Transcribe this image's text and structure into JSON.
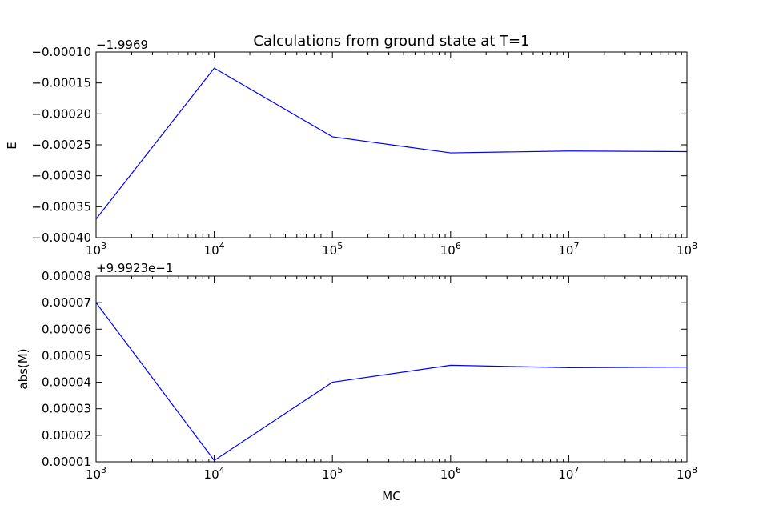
{
  "chart_data": [
    {
      "type": "line",
      "title": "Calculations from ground state at T=1",
      "xlabel": "",
      "ylabel": "E",
      "xscale": "log",
      "xlim": [
        1000,
        100000000
      ],
      "ylim": [
        -0.0004,
        -0.0001
      ],
      "y_offset_label": "−1.9969",
      "x_tick_bases": [
        "10",
        "10",
        "10",
        "10",
        "10",
        "10"
      ],
      "x_tick_exponents": [
        "3",
        "4",
        "5",
        "6",
        "7",
        "8"
      ],
      "y_ticks": [
        -0.0001,
        -0.00015,
        -0.0002,
        -0.00025,
        -0.0003,
        -0.00035,
        -0.0004
      ],
      "y_tick_labels": [
        "−0.00010",
        "−0.00015",
        "−0.00020",
        "−0.00025",
        "−0.00030",
        "−0.00035",
        "−0.00040"
      ],
      "series": [
        {
          "color": "#0000ff",
          "x": [
            1000,
            10000,
            100000,
            1000000,
            10000000,
            100000000
          ],
          "values": [
            -0.00037,
            -0.000126,
            -0.000237,
            -0.000263,
            -0.00026,
            -0.000261
          ]
        }
      ],
      "grid": false
    },
    {
      "type": "line",
      "title": "",
      "xlabel": "MC",
      "ylabel": "abs(M)",
      "xscale": "log",
      "xlim": [
        1000,
        100000000
      ],
      "ylim": [
        1e-05,
        8e-05
      ],
      "y_offset_label": "+9.9923e−1",
      "x_tick_bases": [
        "10",
        "10",
        "10",
        "10",
        "10",
        "10"
      ],
      "x_tick_exponents": [
        "3",
        "4",
        "5",
        "6",
        "7",
        "8"
      ],
      "y_ticks": [
        8e-05,
        7e-05,
        6e-05,
        5e-05,
        4e-05,
        3e-05,
        2e-05,
        1e-05
      ],
      "y_tick_labels": [
        "0.00008",
        "0.00007",
        "0.00006",
        "0.00005",
        "0.00004",
        "0.00003",
        "0.00002",
        "0.00001"
      ],
      "series": [
        {
          "color": "#0000ff",
          "x": [
            1000,
            10000,
            100000,
            1000000,
            10000000,
            100000000
          ],
          "values": [
            7e-05,
            1.05e-05,
            4e-05,
            4.64e-05,
            4.55e-05,
            4.57e-05
          ]
        }
      ],
      "grid": false
    }
  ]
}
